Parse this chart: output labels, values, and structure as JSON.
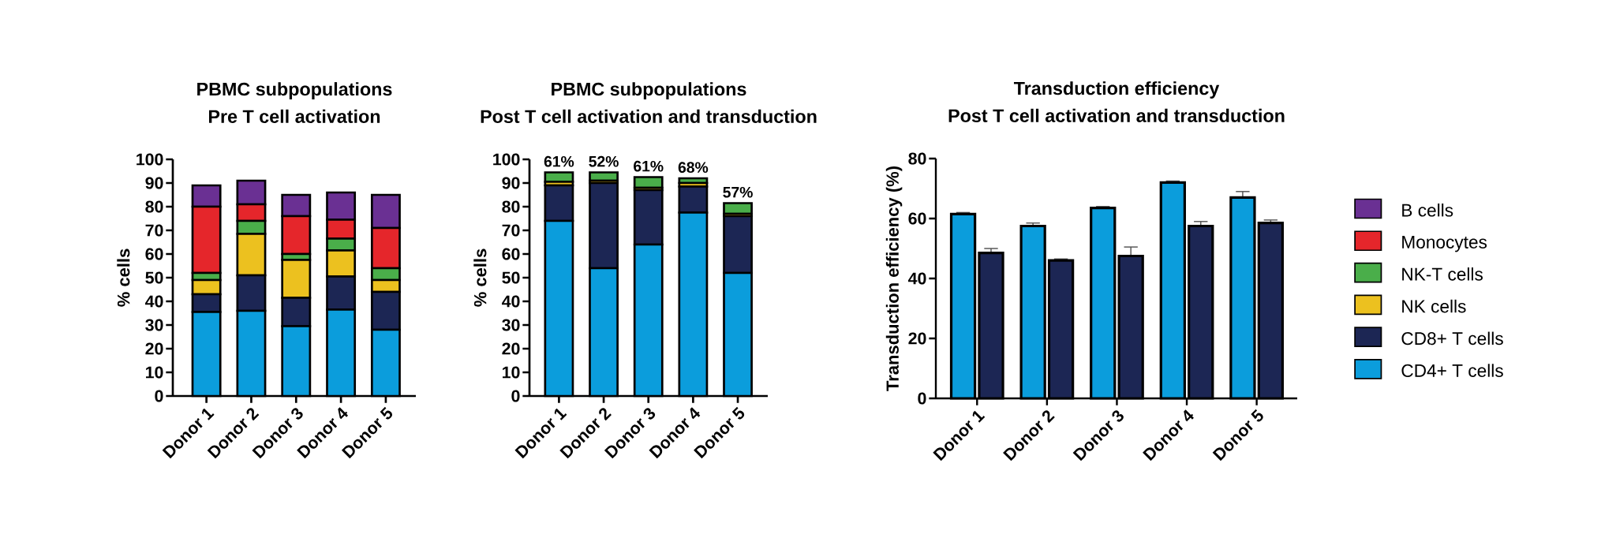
{
  "chart_data": [
    {
      "type": "bar",
      "title": "PBMC subpopulations",
      "subtitle": "Pre T cell activation",
      "ylabel": "% cells",
      "categories": [
        "Donor 1",
        "Donor 2",
        "Donor 3",
        "Donor 4",
        "Donor 5"
      ],
      "stacked": true,
      "legend": "right",
      "ylim": [
        0,
        100
      ],
      "yticks": [
        0,
        10,
        20,
        30,
        40,
        50,
        60,
        70,
        80,
        90,
        100
      ],
      "series": [
        {
          "name": "CD4+ T cells",
          "color": "#0B9DDC",
          "values": [
            35.5,
            36,
            29.5,
            36.5,
            28
          ]
        },
        {
          "name": "CD8+ T cells",
          "color": "#1C2654",
          "values": [
            7.5,
            15,
            12,
            14,
            16
          ]
        },
        {
          "name": "NK cells",
          "color": "#ECC11F",
          "values": [
            6,
            17.5,
            16,
            11,
            5
          ]
        },
        {
          "name": "NK-T cells",
          "color": "#4AAE4A",
          "values": [
            3,
            5.5,
            2.5,
            5,
            5
          ]
        },
        {
          "name": "Monocytes",
          "color": "#E5262B",
          "values": [
            28,
            7,
            16,
            8,
            17
          ]
        },
        {
          "name": "B cells",
          "color": "#6A3093",
          "values": [
            9,
            10,
            9,
            11.5,
            14
          ]
        }
      ]
    },
    {
      "type": "bar",
      "title": "PBMC subpopulations",
      "subtitle": "Post T cell activation and transduction",
      "ylabel": "% cells",
      "categories": [
        "Donor 1",
        "Donor 2",
        "Donor 3",
        "Donor 4",
        "Donor 5"
      ],
      "stacked": true,
      "ylim": [
        0,
        100
      ],
      "yticks": [
        0,
        10,
        20,
        30,
        40,
        50,
        60,
        70,
        80,
        90,
        100
      ],
      "series": [
        {
          "color": "#0B9DDC",
          "values": [
            74,
            54,
            64,
            77.5,
            52
          ]
        },
        {
          "color": "#1C2654",
          "values": [
            15,
            36,
            23,
            11,
            24
          ]
        },
        {
          "color": "#ECC11F",
          "values": [
            1.5,
            1,
            1,
            1.5,
            1
          ]
        },
        {
          "color": "#4AAE4A",
          "values": [
            4,
            3.5,
            4.5,
            2,
            4.5
          ]
        }
      ],
      "annotations": [
        {
          "text": "61%",
          "x": "Donor 1",
          "y": 94.5
        },
        {
          "text": "52%",
          "x": "Donor 2",
          "y": 94.5
        },
        {
          "text": "61%",
          "x": "Donor 3",
          "y": 92.5
        },
        {
          "text": "68%",
          "x": "Donor 4",
          "y": 92
        },
        {
          "text": "57%",
          "x": "Donor 5",
          "y": 81.5
        }
      ]
    },
    {
      "type": "bar",
      "title": "Transduction efficiency",
      "subtitle": "Post T cell activation and transduction",
      "ylabel": "Transduction efficiency (%)",
      "categories": [
        "Donor 1",
        "Donor 2",
        "Donor 3",
        "Donor 4",
        "Donor 5"
      ],
      "ylim": [
        0,
        80
      ],
      "yticks": [
        0,
        20,
        40,
        60,
        80
      ],
      "series": [
        {
          "color": "#0B9DDC",
          "values": [
            61.5,
            57.5,
            63.5,
            72,
            67
          ],
          "errors": [
            0.5,
            1,
            0.5,
            0.5,
            2
          ]
        },
        {
          "color": "#1C2654",
          "values": [
            48.5,
            46,
            47.5,
            57.5,
            58.5
          ],
          "errors": [
            1.5,
            0.5,
            3,
            1.5,
            1
          ]
        }
      ]
    }
  ]
}
